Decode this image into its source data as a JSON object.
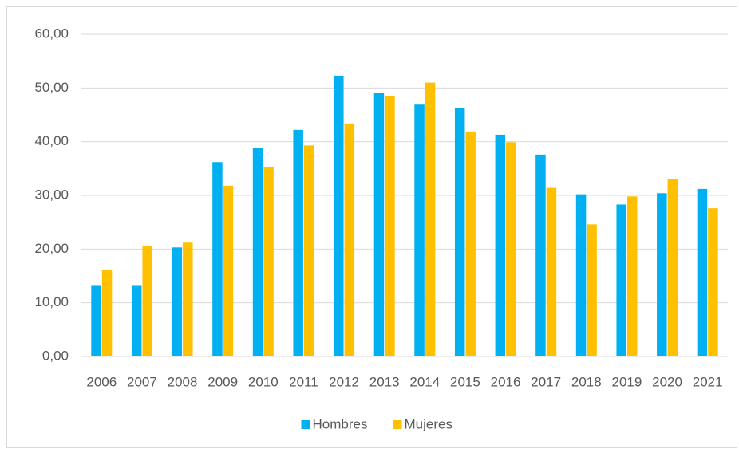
{
  "chart_data": {
    "type": "bar",
    "categories": [
      "2006",
      "2007",
      "2008",
      "2009",
      "2010",
      "2011",
      "2012",
      "2013",
      "2014",
      "2015",
      "2016",
      "2017",
      "2018",
      "2019",
      "2020",
      "2021"
    ],
    "series": [
      {
        "name": "Hombres",
        "color": "#00b0f0",
        "values": [
          13.3,
          13.3,
          20.3,
          36.2,
          38.8,
          42.2,
          52.3,
          49.1,
          46.9,
          46.2,
          41.3,
          37.6,
          30.2,
          28.3,
          30.4,
          31.2
        ]
      },
      {
        "name": "Mujeres",
        "color": "#ffc000",
        "values": [
          16.1,
          20.5,
          21.2,
          31.8,
          35.2,
          39.3,
          43.4,
          48.5,
          51.0,
          41.9,
          39.9,
          31.4,
          24.6,
          29.8,
          33.1,
          27.6
        ]
      }
    ],
    "ylim": [
      0,
      60
    ],
    "yticks": [
      {
        "value": 0,
        "label": "0,00"
      },
      {
        "value": 10,
        "label": "10,00"
      },
      {
        "value": 20,
        "label": "20,00"
      },
      {
        "value": 30,
        "label": "30,00"
      },
      {
        "value": 40,
        "label": "40,00"
      },
      {
        "value": 50,
        "label": "50,00"
      },
      {
        "value": 60,
        "label": "60,00"
      }
    ],
    "grid": true,
    "legend": "bottom"
  }
}
